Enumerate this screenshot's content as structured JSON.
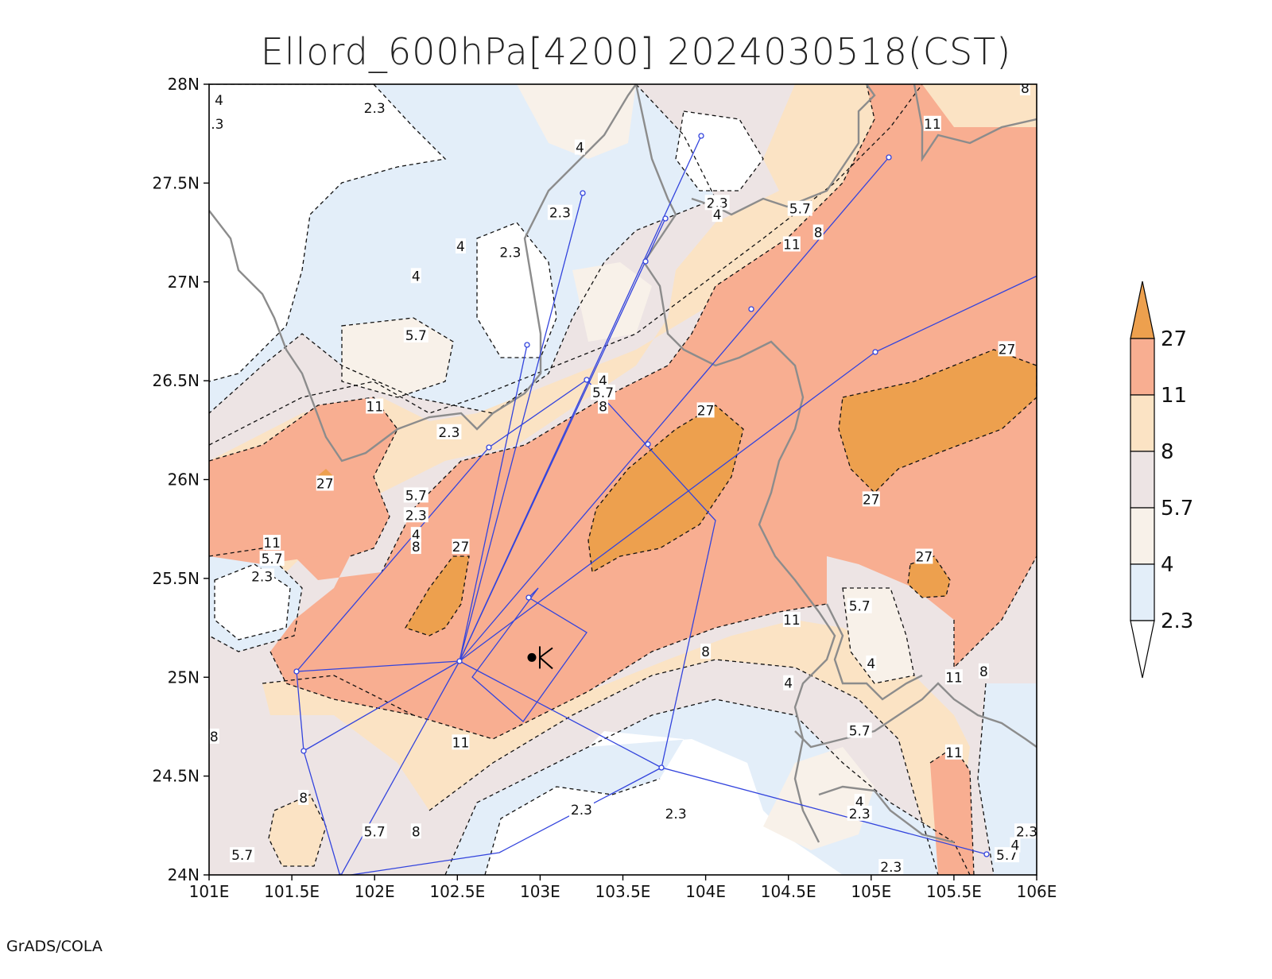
{
  "title": "Ellord_600hPa[4200] 2024030518(CST)",
  "footer": "GrADS/COLA",
  "colors": {
    "below_2_3": "#ffffff",
    "c_2_3_4": "#e3eef9",
    "c_4_5_7": "#f8f1e9",
    "c_5_7_8": "#ede4e4",
    "c_8_11": "#fbe3c4",
    "c_11_27": "#f8ae91",
    "above_27": "#eda04e",
    "route": "#3344dd",
    "border": "#8c8c8c"
  },
  "map": {
    "lon_range": [
      101,
      106
    ],
    "lat_range": [
      24,
      28
    ],
    "x_ticks": [
      "101E",
      "101.5E",
      "102E",
      "102.5E",
      "103E",
      "103.5E",
      "104E",
      "104.5E",
      "105E",
      "105.5E",
      "106E"
    ],
    "y_ticks": [
      "24N",
      "24.5N",
      "25N",
      "25.5N",
      "26N",
      "26.5N",
      "27N",
      "27.5N",
      "28N"
    ]
  },
  "legend": {
    "levels": [
      "2.3",
      "4",
      "5.7",
      "8",
      "11",
      "27"
    ]
  },
  "contour_labels": [
    {
      "text": "2.3",
      "lon": 102.0,
      "lat": 27.88
    },
    {
      "text": "4",
      "lon": 103.24,
      "lat": 27.68
    },
    {
      "text": "2.3",
      "lon": 103.12,
      "lat": 27.35
    },
    {
      "text": "4",
      "lon": 102.52,
      "lat": 27.18
    },
    {
      "text": "2.3",
      "lon": 102.82,
      "lat": 27.15
    },
    {
      "text": "4",
      "lon": 102.25,
      "lat": 27.03
    },
    {
      "text": "5.7",
      "lon": 102.25,
      "lat": 26.73
    },
    {
      "text": "11",
      "lon": 102.0,
      "lat": 26.37
    },
    {
      "text": "2.3",
      "lon": 102.45,
      "lat": 26.24
    },
    {
      "text": "27",
      "lon": 101.7,
      "lat": 25.98
    },
    {
      "text": "5.7",
      "lon": 102.25,
      "lat": 25.92
    },
    {
      "text": "2.3",
      "lon": 102.25,
      "lat": 25.82
    },
    {
      "text": "4",
      "lon": 102.25,
      "lat": 25.72
    },
    {
      "text": "8",
      "lon": 102.25,
      "lat": 25.66
    },
    {
      "text": "11",
      "lon": 101.38,
      "lat": 25.68
    },
    {
      "text": "5.7",
      "lon": 101.38,
      "lat": 25.6
    },
    {
      "text": "2.3",
      "lon": 101.32,
      "lat": 25.51
    },
    {
      "text": "27",
      "lon": 102.52,
      "lat": 25.66
    },
    {
      "text": "4",
      "lon": 103.38,
      "lat": 26.5
    },
    {
      "text": "5.7",
      "lon": 103.38,
      "lat": 26.44
    },
    {
      "text": "8",
      "lon": 103.38,
      "lat": 26.37
    },
    {
      "text": "27",
      "lon": 104.0,
      "lat": 26.35
    },
    {
      "text": "2.3",
      "lon": 104.07,
      "lat": 27.4
    },
    {
      "text": "4",
      "lon": 104.07,
      "lat": 27.34
    },
    {
      "text": "5.7",
      "lon": 104.57,
      "lat": 27.37
    },
    {
      "text": "8",
      "lon": 104.68,
      "lat": 27.25
    },
    {
      "text": "11",
      "lon": 104.52,
      "lat": 27.19
    },
    {
      "text": "11",
      "lon": 105.37,
      "lat": 27.8
    },
    {
      "text": "27",
      "lon": 105.82,
      "lat": 26.66
    },
    {
      "text": "27",
      "lon": 105.0,
      "lat": 25.9
    },
    {
      "text": "27",
      "lon": 105.32,
      "lat": 25.61
    },
    {
      "text": "11",
      "lon": 104.52,
      "lat": 25.29
    },
    {
      "text": "5.7",
      "lon": 104.93,
      "lat": 25.36
    },
    {
      "text": "8",
      "lon": 104.0,
      "lat": 25.13
    },
    {
      "text": "4",
      "lon": 104.5,
      "lat": 24.97
    },
    {
      "text": "4",
      "lon": 105.0,
      "lat": 25.07
    },
    {
      "text": "11",
      "lon": 105.5,
      "lat": 25.0
    },
    {
      "text": "8",
      "lon": 105.68,
      "lat": 25.03
    },
    {
      "text": "5.7",
      "lon": 104.93,
      "lat": 24.73
    },
    {
      "text": "11",
      "lon": 102.52,
      "lat": 24.67
    },
    {
      "text": "11",
      "lon": 105.5,
      "lat": 24.62
    },
    {
      "text": "4",
      "lon": 104.93,
      "lat": 24.37
    },
    {
      "text": "2.3",
      "lon": 103.25,
      "lat": 24.33
    },
    {
      "text": "2.3",
      "lon": 103.82,
      "lat": 24.31
    },
    {
      "text": "2.3",
      "lon": 104.93,
      "lat": 24.31
    },
    {
      "text": "2.3",
      "lon": 105.12,
      "lat": 24.04
    },
    {
      "text": "8",
      "lon": 101.57,
      "lat": 24.39
    },
    {
      "text": "5.7",
      "lon": 102.0,
      "lat": 24.22
    },
    {
      "text": "8",
      "lon": 102.25,
      "lat": 24.22
    },
    {
      "text": "5.7",
      "lon": 101.2,
      "lat": 24.1
    },
    {
      "text": "4",
      "lon": 101.06,
      "lat": 27.92
    },
    {
      "text": ".3",
      "lon": 101.05,
      "lat": 27.8
    },
    {
      "text": "8",
      "lon": 101.03,
      "lat": 24.7
    },
    {
      "text": "5.7",
      "lon": 105.82,
      "lat": 24.1
    },
    {
      "text": "4",
      "lon": 105.87,
      "lat": 24.15
    },
    {
      "text": "2.3",
      "lon": 105.94,
      "lat": 24.22
    },
    {
      "text": "8",
      "lon": 105.93,
      "lat": 27.98
    }
  ],
  "station": {
    "lon": 102.95,
    "lat": 25.1
  }
}
